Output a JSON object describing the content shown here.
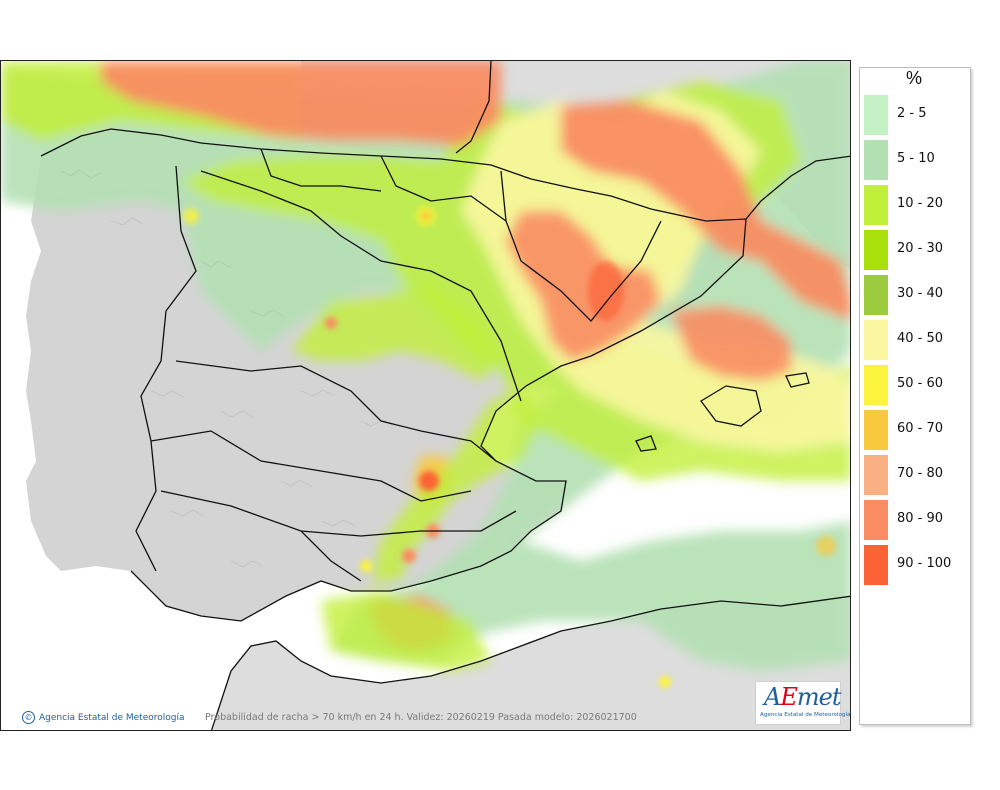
{
  "map": {
    "caption": "Probabilidad de racha > 70 km/h en 24 h. Validez: 20260219 Pasada modelo: 2026021700",
    "credit": "Agencia Estatal de Meteorología",
    "credit_symbol": "©",
    "logo_word_a": "A",
    "logo_word_e": "E",
    "logo_word_rest": "met",
    "logo_sub": "Agencia Estatal de Meteorología",
    "colors": {
      "sea": "#ffffff",
      "land_peninsula": "#d4d4d4",
      "land_other": "#dddddd",
      "borders": "#111111"
    }
  },
  "legend": {
    "unit": "%",
    "classes": [
      {
        "label": "2 - 5",
        "color": "#c4f2c4"
      },
      {
        "label": "5 - 10",
        "color": "#b2e0b2"
      },
      {
        "label": "10 - 20",
        "color": "#c2ef3a"
      },
      {
        "label": "20 - 30",
        "color": "#a9df0a"
      },
      {
        "label": "30 - 40",
        "color": "#9ccb3e"
      },
      {
        "label": "40 - 50",
        "color": "#fbf7a1"
      },
      {
        "label": "50 - 60",
        "color": "#fbf33c"
      },
      {
        "label": "60 - 70",
        "color": "#f9c93d"
      },
      {
        "label": "70 - 80",
        "color": "#f8b083"
      },
      {
        "label": "80 - 90",
        "color": "#f98c62"
      },
      {
        "label": "90 - 100",
        "color": "#fb6336"
      }
    ]
  }
}
